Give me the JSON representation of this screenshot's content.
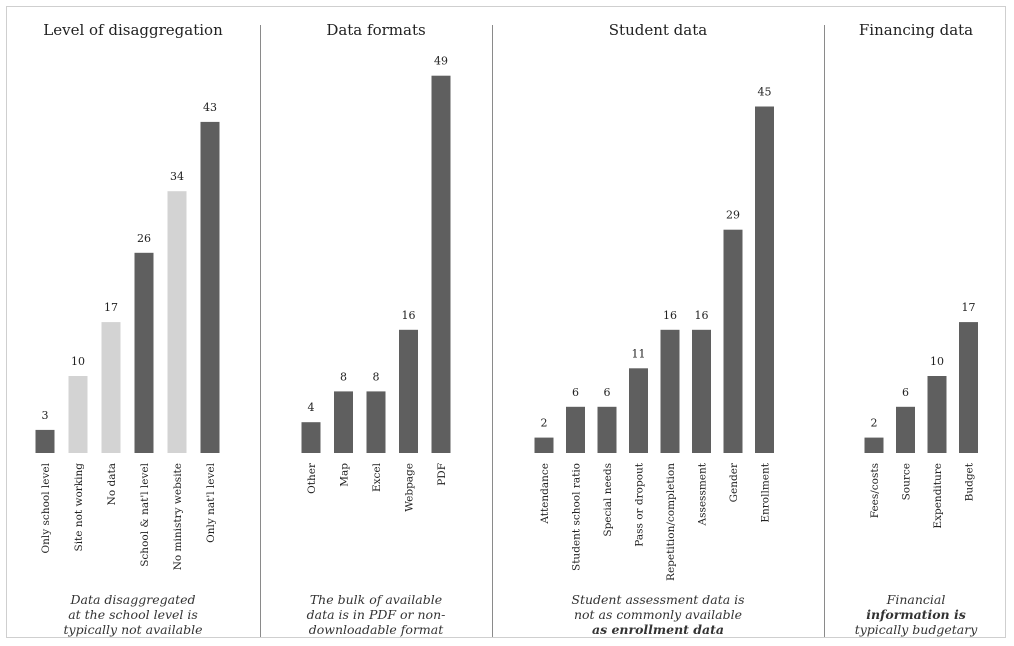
{
  "chart_data": [
    {
      "type": "bar",
      "title": "Level of disaggregation",
      "categories": [
        "Only school level",
        "Site not working",
        "No data",
        "School & nat'l level",
        "No ministry website",
        "Only nat'l level"
      ],
      "values": [
        3,
        10,
        17,
        26,
        34,
        43
      ],
      "highlight": [
        false,
        true,
        true,
        false,
        true,
        false
      ],
      "caption": [
        "Data disaggregated",
        "at the school level is",
        "typically not available"
      ],
      "caption_bold": [
        false,
        false,
        false
      ]
    },
    {
      "type": "bar",
      "title": "Data formats",
      "categories": [
        "Other",
        "Map",
        "Excel",
        "Webpage",
        "PDF"
      ],
      "values": [
        4,
        8,
        8,
        16,
        49
      ],
      "highlight": [
        false,
        false,
        false,
        false,
        false
      ],
      "caption": [
        "The bulk of available",
        "data is in PDF or non-",
        "downloadable format"
      ],
      "caption_bold": [
        false,
        false,
        false
      ]
    },
    {
      "type": "bar",
      "title": "Student data",
      "categories": [
        "Attendance",
        "Student school ratio",
        "Special needs",
        "Pass or dropout",
        "Repetition/completion",
        "Assessment",
        "Gender",
        "Enrollment"
      ],
      "values": [
        2,
        6,
        6,
        11,
        16,
        16,
        29,
        45
      ],
      "highlight": [
        false,
        false,
        false,
        false,
        false,
        false,
        false,
        false
      ],
      "caption": [
        "Student assessment data is",
        "not as commonly available",
        "as enrollment data"
      ],
      "caption_bold": [
        false,
        false,
        true
      ]
    },
    {
      "type": "bar",
      "title": "Financing data",
      "categories": [
        "Fees/costs",
        "Source",
        "Expenditure",
        "Budget"
      ],
      "values": [
        2,
        6,
        10,
        17
      ],
      "highlight": [
        false,
        false,
        false,
        false
      ],
      "caption": [
        "Financial",
        "information is",
        "typically budgetary"
      ],
      "caption_bold": [
        false,
        true,
        false
      ]
    }
  ],
  "colors": {
    "bar": "#5f5f5f",
    "bar_light": "#d3d3d3",
    "text": "#222222"
  }
}
